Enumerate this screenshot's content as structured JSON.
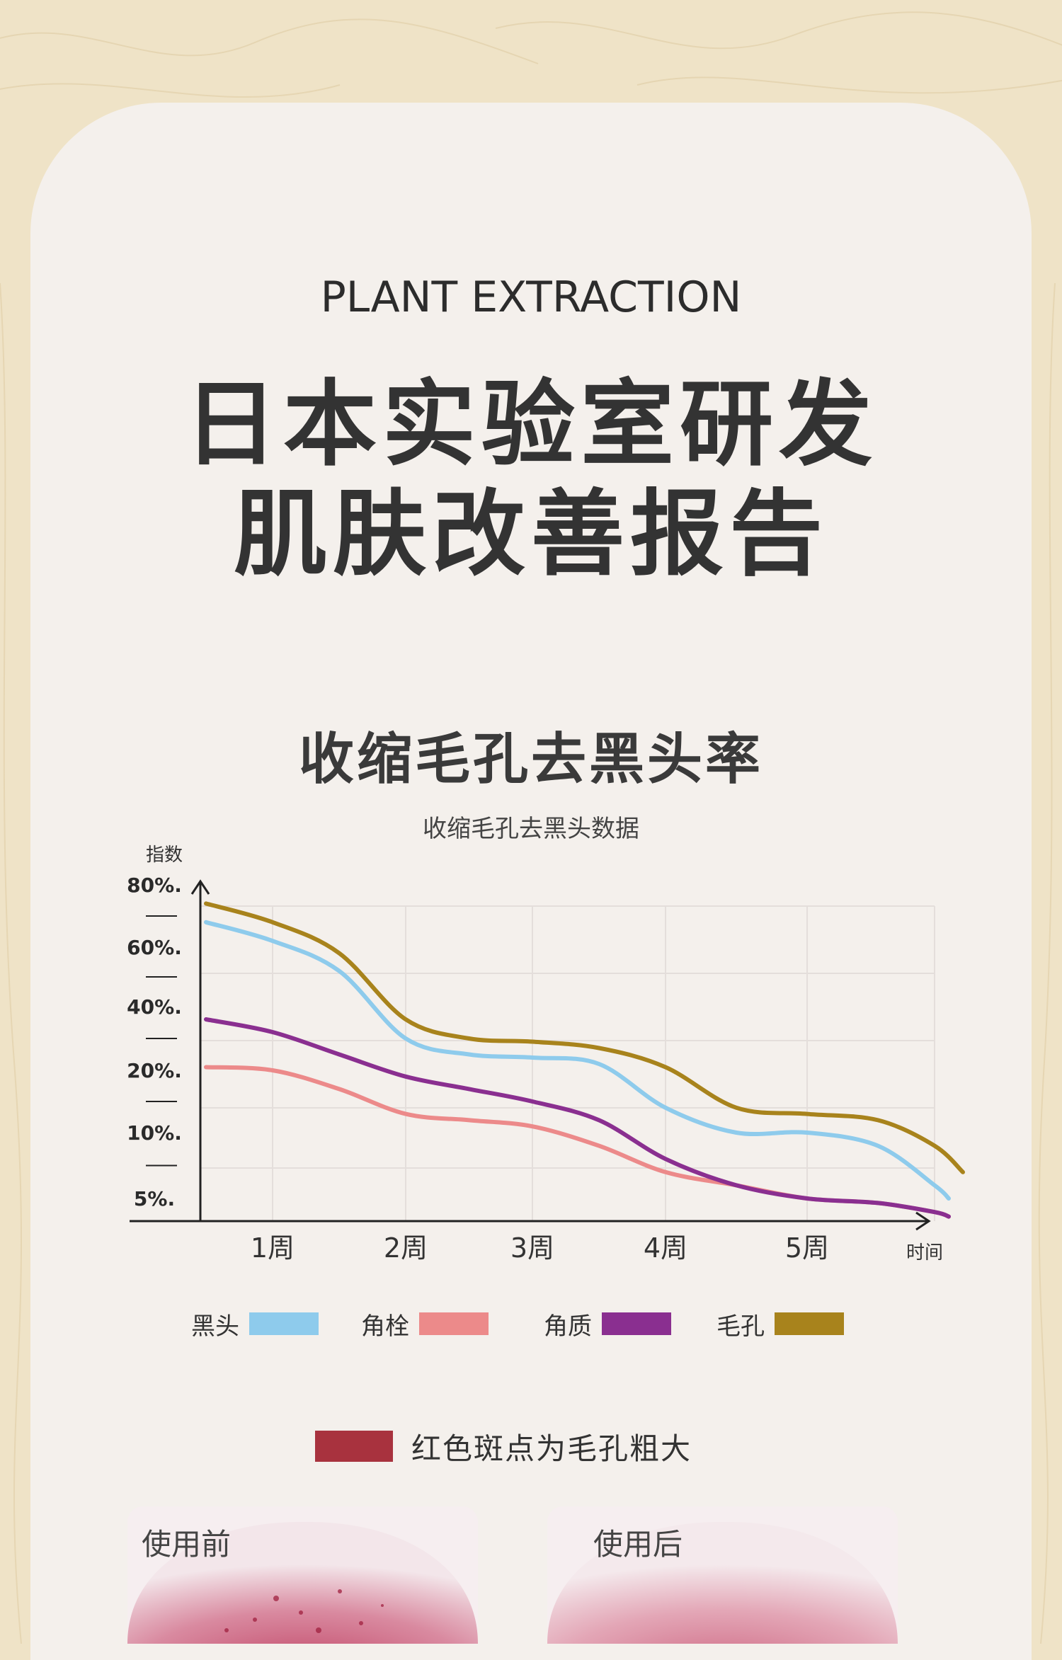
{
  "header": {
    "subtitle_en": "PLANT EXTRACTION",
    "title_line1": "日本实验室研发",
    "title_line2": "肌肤改善报告"
  },
  "section": {
    "heading": "收缩毛孔去黑头率"
  },
  "chart_data": {
    "type": "line",
    "title": "收缩毛孔去黑头数据",
    "ylabel": "指数",
    "xlabel": "时间",
    "y_tick_labels": [
      "80%.",
      "60%.",
      "40%.",
      "20%.",
      "10%.",
      "5%."
    ],
    "categories": [
      "1周",
      "2周",
      "3周",
      "4周",
      "5周"
    ],
    "x_range": [
      0.4,
      6.1
    ],
    "grid": true,
    "legend_position": "bottom",
    "series": [
      {
        "name": "黑头",
        "color": "#8ecbec",
        "x": [
          0.5,
          1.0,
          1.5,
          2.0,
          2.5,
          3.0,
          3.5,
          4.0,
          4.5,
          5.0,
          5.5,
          5.9,
          6.0
        ],
        "y": [
          68,
          62,
          52,
          30,
          25,
          24,
          22,
          14,
          10,
          10,
          9,
          6,
          5
        ]
      },
      {
        "name": "角栓",
        "color": "#ec8a8a",
        "x": [
          0.5,
          1.0,
          1.5,
          2.0,
          2.5,
          3.0,
          3.5,
          4.0,
          4.5,
          5.0,
          5.5,
          5.9,
          6.0
        ],
        "y": [
          21,
          20,
          17,
          13,
          12,
          11,
          9,
          7,
          6,
          5,
          4,
          2,
          1
        ]
      },
      {
        "name": "角质",
        "color": "#8a2f90",
        "x": [
          0.5,
          1.0,
          1.5,
          2.0,
          2.5,
          3.0,
          3.5,
          4.0,
          4.5,
          5.0,
          5.5,
          5.9,
          6.0
        ],
        "y": [
          36,
          32,
          25,
          19,
          17,
          15,
          12,
          8,
          6,
          5,
          4,
          2,
          1
        ]
      },
      {
        "name": "毛孔",
        "color": "#a8831c",
        "x": [
          0.5,
          1.0,
          1.5,
          2.0,
          2.5,
          3.0,
          3.5,
          4.0,
          4.5,
          5.0,
          5.5,
          5.9,
          6.1
        ],
        "y": [
          74,
          68,
          58,
          36,
          30,
          29,
          27,
          21,
          14,
          13,
          12,
          9,
          7
        ]
      }
    ]
  },
  "note": {
    "text": "红色斑点为毛孔粗大",
    "color": "#a8323e"
  },
  "photos": {
    "before_label": "使用前",
    "after_label": "使用后"
  }
}
